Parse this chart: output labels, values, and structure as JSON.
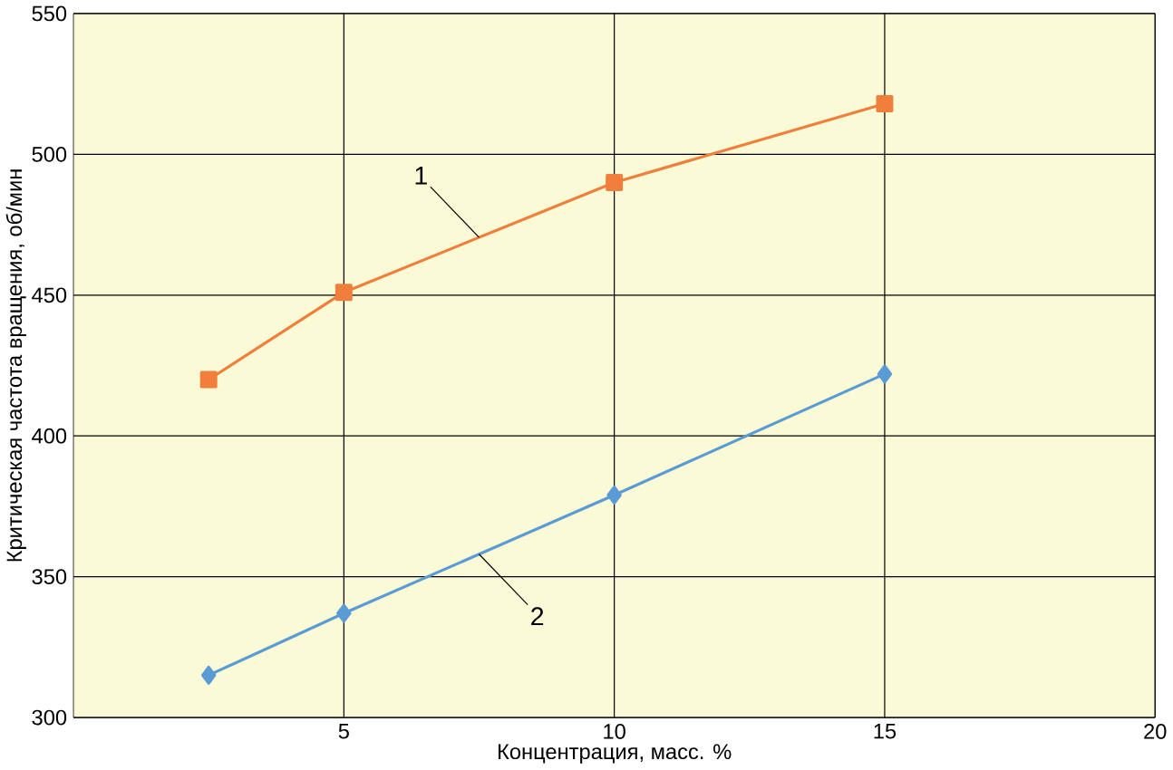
{
  "chart_data": {
    "type": "line",
    "xlabel": "Концентрация, масс. %",
    "ylabel": "Критическая частота вращения, об/мин",
    "x": [
      2.5,
      5,
      10,
      15
    ],
    "series": [
      {
        "name": "1",
        "color": "#f07f3c",
        "marker": "square",
        "values": [
          420,
          451,
          490,
          518
        ]
      },
      {
        "name": "2",
        "color": "#5b9bd5",
        "marker": "diamond",
        "values": [
          315,
          337,
          379,
          422
        ]
      }
    ],
    "xlim": [
      0,
      20
    ],
    "xticks": [
      5,
      10,
      15,
      20
    ],
    "ylim": [
      300,
      550
    ],
    "yticks": [
      300,
      350,
      400,
      450,
      500,
      550
    ],
    "grid": true,
    "legend": false
  }
}
